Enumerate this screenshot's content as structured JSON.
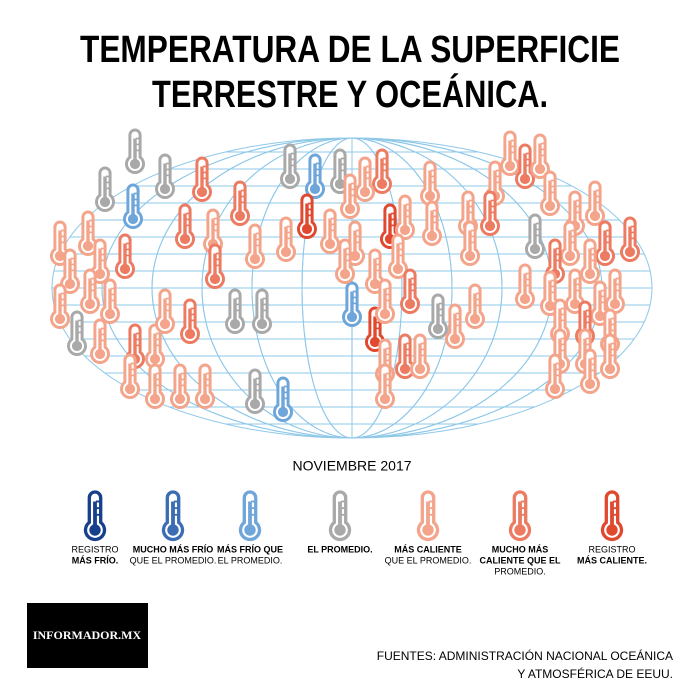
{
  "header": {
    "title_lines": [
      "TEMPERATURA DE LA SUPERFICIE",
      "TERRESTRE Y OCEÁNICA."
    ]
  },
  "map": {
    "period": "NOVIEMBRE 2017"
  },
  "legend": [
    {
      "color": "#173f8c",
      "lines": [
        {
          "text": "REGISTRO",
          "bold": false
        },
        {
          "text": "MÁS FRÍO.",
          "bold": true
        }
      ]
    },
    {
      "color": "#3a6db3",
      "lines": [
        {
          "text": "MUCHO MÁS FRÍO",
          "bold": true
        },
        {
          "text": "QUE EL PROMEDIO.",
          "bold": false
        }
      ]
    },
    {
      "color": "#6fa6da",
      "lines": [
        {
          "text": "MÁS FRÍO QUE",
          "bold": true
        },
        {
          "text": "EL PROMEDIO.",
          "bold": false
        }
      ]
    },
    {
      "color": "#a9a9a9",
      "lines": [
        {
          "text": "EL PROMEDIO.",
          "bold": true
        }
      ]
    },
    {
      "color": "#f4a48a",
      "lines": [
        {
          "text": "MÁS CALIENTE",
          "bold": true
        },
        {
          "text": "QUE EL PROMEDIO.",
          "bold": false
        }
      ]
    },
    {
      "color": "#ec7b62",
      "lines": [
        {
          "text": "MUCHO MÁS",
          "bold": true
        },
        {
          "text": "CALIENTE QUE EL",
          "bold": true
        },
        {
          "text": "PROMEDIO.",
          "bold": false
        }
      ]
    },
    {
      "color": "#e0492f",
      "lines": [
        {
          "text": "REGISTRO",
          "bold": false
        },
        {
          "text": "MÁS CALIENTE.",
          "bold": true
        }
      ]
    }
  ],
  "footer": {
    "logo": "INFORMADOR.MX",
    "source_lines": [
      "FUENTES: ADMINISTRACIÓN NACIONAL OCEÁNICA",
      "Y ATMOSFÉRICA DE EEUU."
    ]
  }
}
